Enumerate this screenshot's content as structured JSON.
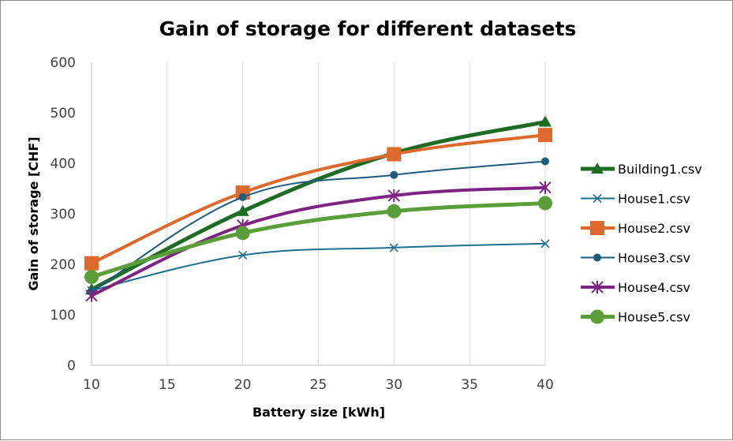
{
  "chart_data": {
    "type": "line",
    "title": "Gain of storage for different datasets",
    "xlabel": "Battery size [kWh]",
    "ylabel": "Gain of storage [CHF]",
    "x": [
      10,
      20,
      30,
      40
    ],
    "xlim": [
      10,
      40
    ],
    "ylim": [
      0,
      600
    ],
    "xticks": [
      10,
      15,
      20,
      25,
      30,
      35,
      40
    ],
    "yticks": [
      0,
      100,
      200,
      300,
      400,
      500,
      600
    ],
    "xtick_labels": [
      "10",
      "15",
      "20",
      "25",
      "30",
      "35",
      "40"
    ],
    "ytick_labels": [
      "0",
      "100",
      "200",
      "300",
      "400",
      "500",
      "600"
    ],
    "grid": "vertical",
    "legend_position": "right",
    "series": [
      {
        "name": "Building1.csv",
        "values": [
          150,
          305,
          420,
          482
        ],
        "color": "#1e6b24",
        "marker": "triangle",
        "width": 5
      },
      {
        "name": "House1.csv",
        "values": [
          148,
          218,
          233,
          241
        ],
        "color": "#1f6e8c",
        "marker": "x",
        "width": 2
      },
      {
        "name": "House2.csv",
        "values": [
          202,
          342,
          418,
          456
        ],
        "color": "#dd6a2c",
        "marker": "square",
        "width": 4
      },
      {
        "name": "House3.csv",
        "values": [
          145,
          333,
          377,
          404
        ],
        "color": "#1d5a7e",
        "marker": "circle-small",
        "width": 2
      },
      {
        "name": "House4.csv",
        "values": [
          138,
          277,
          336,
          352
        ],
        "color": "#7f2383",
        "marker": "star",
        "width": 4
      },
      {
        "name": "House5.csv",
        "values": [
          175,
          262,
          305,
          321
        ],
        "color": "#5a9e3a",
        "marker": "circle",
        "width": 5
      }
    ]
  }
}
